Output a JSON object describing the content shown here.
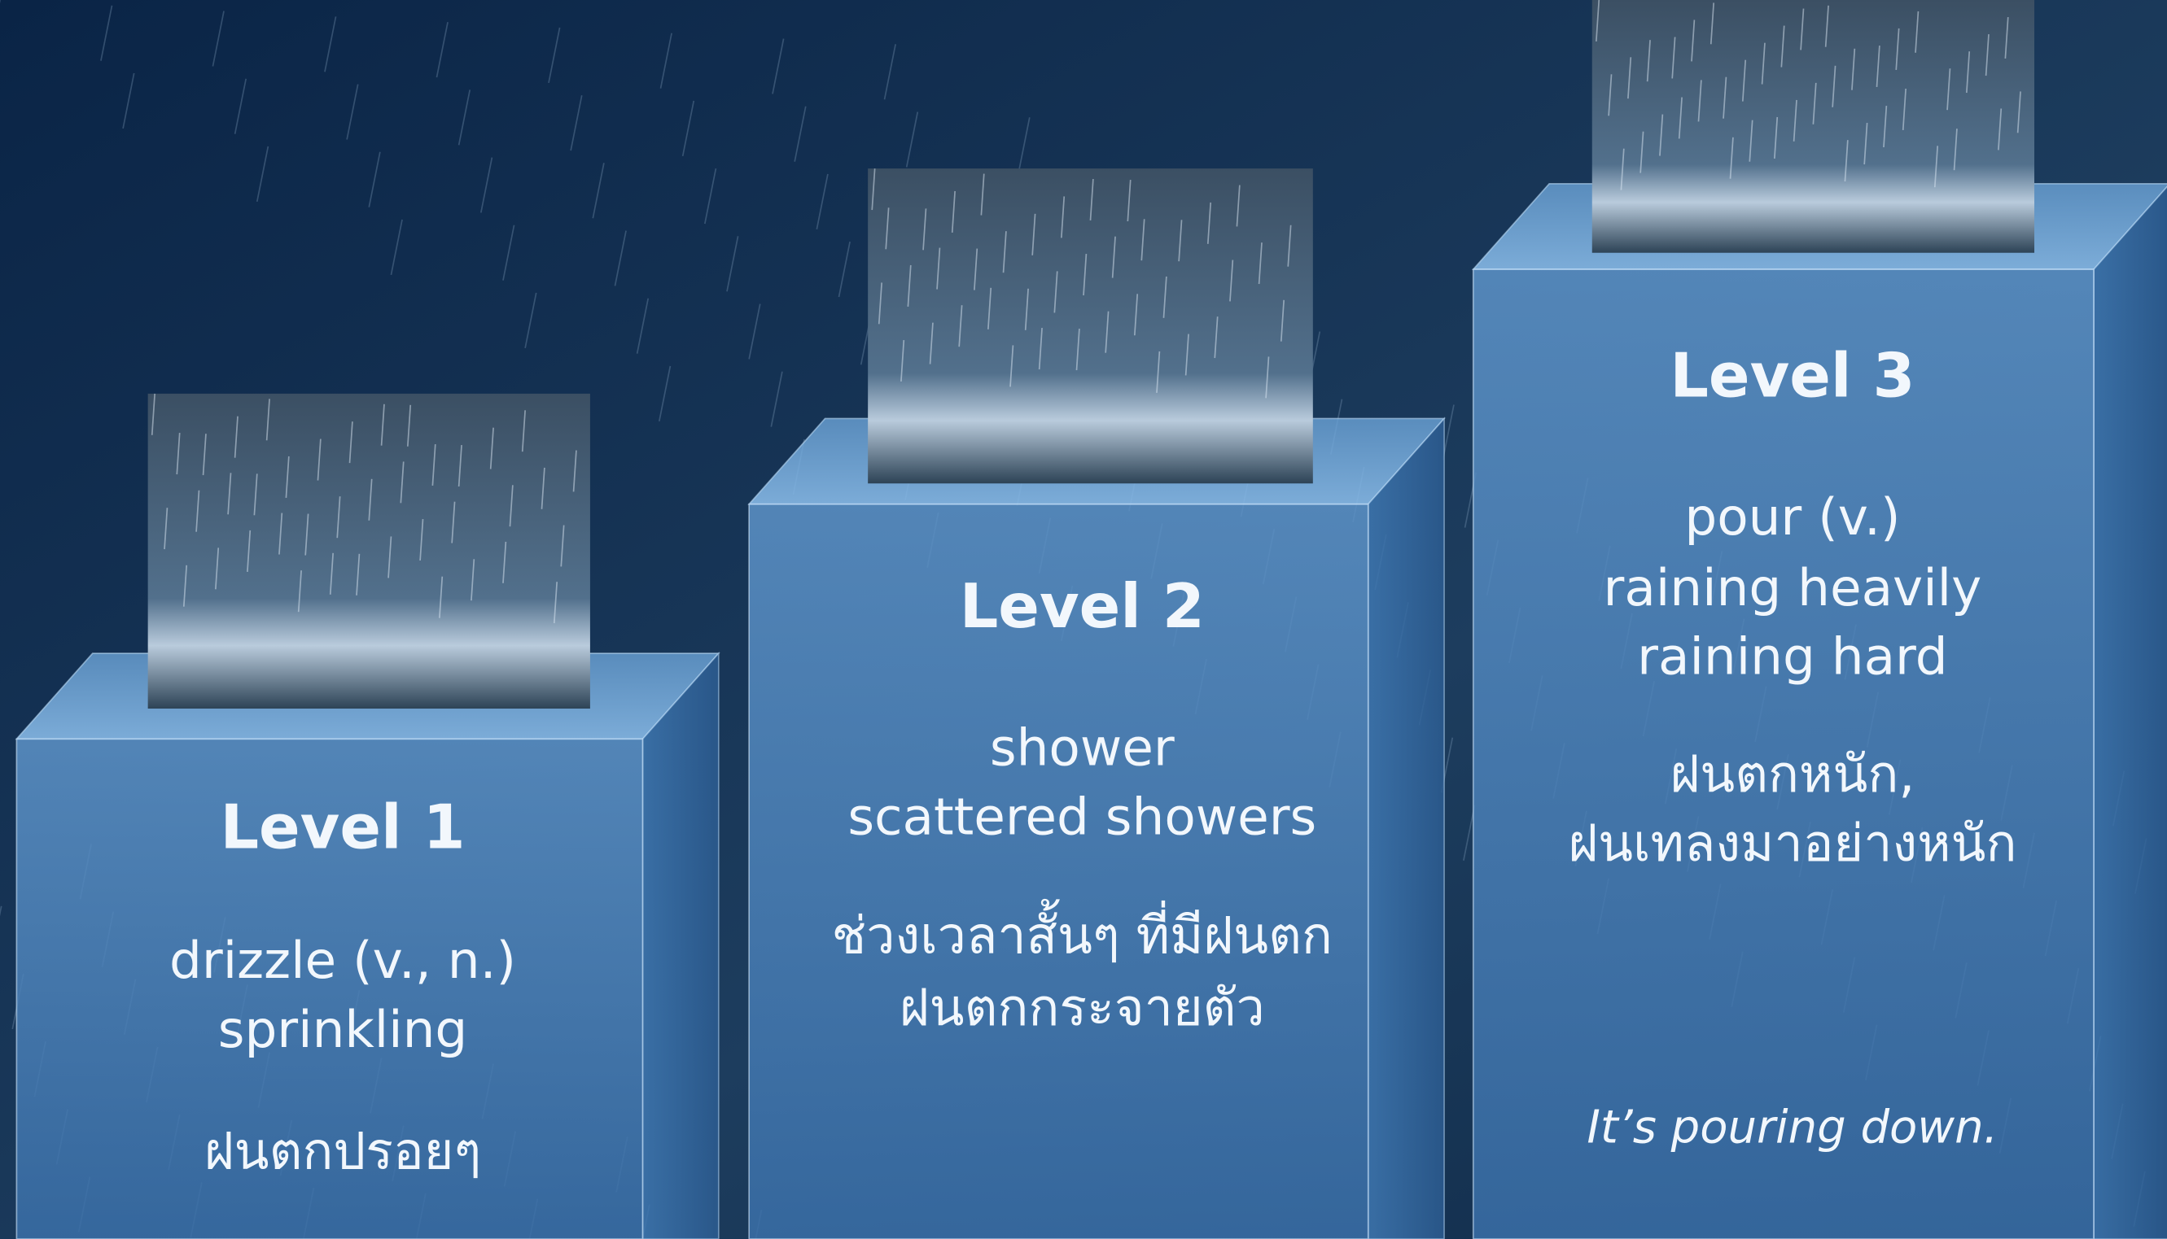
{
  "levels": [
    {
      "label": "Level 1",
      "english": [
        "drizzle (v., n.)",
        "sprinkling"
      ],
      "thai": [
        "ฝนตกปรอยๆ"
      ]
    },
    {
      "label": "Level 2",
      "english": [
        "shower",
        "scattered showers"
      ],
      "thai": [
        "ช่วงเวลาสั้นๆ ที่มีฝนตก",
        "ฝนตกกระจายตัว"
      ]
    },
    {
      "label": "Level 3",
      "english": [
        "pour (v.)",
        "raining heavily",
        "raining hard"
      ],
      "thai": [
        "ฝนตกหนัก,",
        "ฝนเทลงมาอย่างหนัก"
      ],
      "example": "It’s pouring down."
    }
  ]
}
